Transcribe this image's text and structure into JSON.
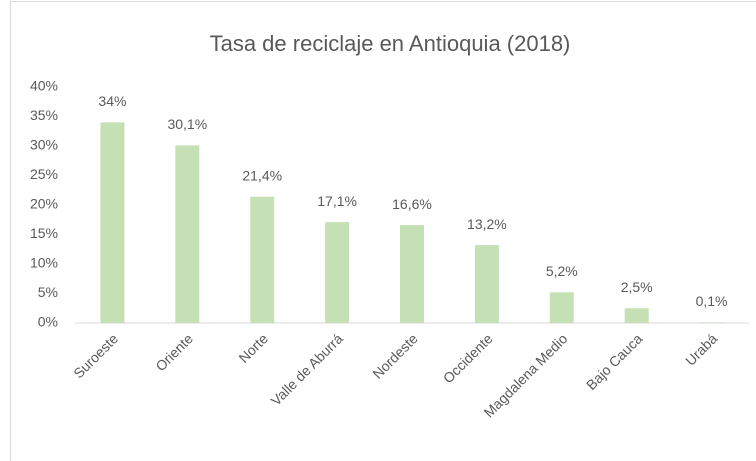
{
  "chart_data": {
    "type": "bar",
    "title": "Tasa de reciclaje en Antioquia (2018)",
    "categories": [
      "Suroeste",
      "Oriente",
      "Norte",
      "Valle de Aburrá",
      "Nordeste",
      "Occidente",
      "Magdalena Medio",
      "Bajo Cauca",
      "Urabá"
    ],
    "values": [
      34,
      30.1,
      21.4,
      17.1,
      16.6,
      13.2,
      5.2,
      2.5,
      0.1
    ],
    "value_labels": [
      "34%",
      "30,1%",
      "21,4%",
      "17,1%",
      "16,6%",
      "13,2%",
      "5,2%",
      "2,5%",
      "0,1%"
    ],
    "color": "#c5e0b4",
    "ylim": [
      0,
      40
    ],
    "yticks": [
      {
        "value": 0,
        "label": "0%"
      },
      {
        "value": 5,
        "label": "5%"
      },
      {
        "value": 10,
        "label": "10%"
      },
      {
        "value": 15,
        "label": "15%"
      },
      {
        "value": 20,
        "label": "20%"
      },
      {
        "value": 25,
        "label": "25%"
      },
      {
        "value": 30,
        "label": "30%"
      },
      {
        "value": 35,
        "label": "35%"
      },
      {
        "value": 40,
        "label": "40%"
      }
    ],
    "grid": false
  }
}
